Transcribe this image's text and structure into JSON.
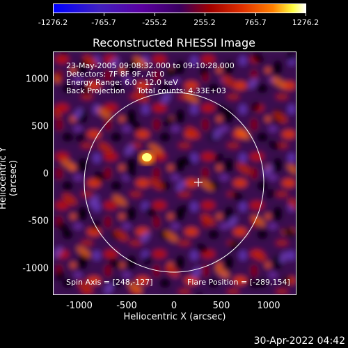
{
  "colorbar": {
    "ticks": [
      "-1276.2",
      "-765.7",
      "-255.2",
      "255.2",
      "765.7",
      "1276.2"
    ]
  },
  "title": "Reconstructed RHESSI Image",
  "info": {
    "line1": "23-May-2005 09:08:32.000 to 09:10:28.000",
    "line2": "Detectors: 7F 8F 9F, Att 0",
    "line3": "Energy Range: 6.0 - 12.0 keV",
    "line4": "Back Projection     Total counts: 4.33E+03",
    "spin_axis": "Spin Axis = [248,-127]",
    "flare_position": "Flare Position = [-289,154]"
  },
  "axes": {
    "xlabel": "Heliocentric X (arcsec)",
    "ylabel": "Heliocentric Y (arcsec)",
    "xticks": [
      "-1000",
      "-500",
      "0",
      "500",
      "1000"
    ],
    "yticks": [
      "1000",
      "500",
      "0",
      "-500",
      "-1000"
    ]
  },
  "timestamp": "30-Apr-2022 04:42"
}
